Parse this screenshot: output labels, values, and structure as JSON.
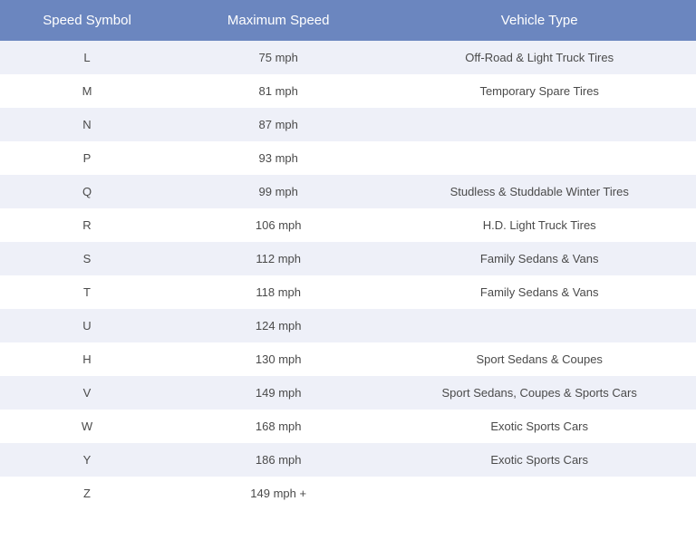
{
  "table": {
    "header_bg": "#6b86bf",
    "header_text_color": "#ffffff",
    "row_even_bg": "#eef0f8",
    "row_odd_bg": "#ffffff",
    "cell_text_color": "#4a4a4a",
    "header_fontsize": 15,
    "cell_fontsize": 13,
    "columns": [
      {
        "key": "symbol",
        "label": "Speed Symbol",
        "width": "25%"
      },
      {
        "key": "speed",
        "label": "Maximum Speed",
        "width": "30%"
      },
      {
        "key": "vehicle",
        "label": "Vehicle Type",
        "width": "45%"
      }
    ],
    "rows": [
      {
        "symbol": "L",
        "speed": "75 mph",
        "vehicle": "Off-Road & Light Truck Tires"
      },
      {
        "symbol": "M",
        "speed": "81 mph",
        "vehicle": "Temporary Spare Tires"
      },
      {
        "symbol": "N",
        "speed": "87 mph",
        "vehicle": ""
      },
      {
        "symbol": "P",
        "speed": "93 mph",
        "vehicle": ""
      },
      {
        "symbol": "Q",
        "speed": "99 mph",
        "vehicle": "Studless & Studdable Winter Tires"
      },
      {
        "symbol": "R",
        "speed": "106 mph",
        "vehicle": "H.D. Light Truck Tires"
      },
      {
        "symbol": "S",
        "speed": "112 mph",
        "vehicle": "Family Sedans & Vans"
      },
      {
        "symbol": "T",
        "speed": "118 mph",
        "vehicle": "Family Sedans & Vans"
      },
      {
        "symbol": "U",
        "speed": "124 mph",
        "vehicle": ""
      },
      {
        "symbol": "H",
        "speed": "130 mph",
        "vehicle": "Sport Sedans & Coupes"
      },
      {
        "symbol": "V",
        "speed": "149 mph",
        "vehicle": "Sport Sedans, Coupes & Sports Cars"
      },
      {
        "symbol": "W",
        "speed": "168 mph",
        "vehicle": "Exotic Sports Cars"
      },
      {
        "symbol": "Y",
        "speed": "186 mph",
        "vehicle": "Exotic Sports Cars"
      },
      {
        "symbol": "Z",
        "speed": "149 mph +",
        "vehicle": ""
      }
    ]
  }
}
